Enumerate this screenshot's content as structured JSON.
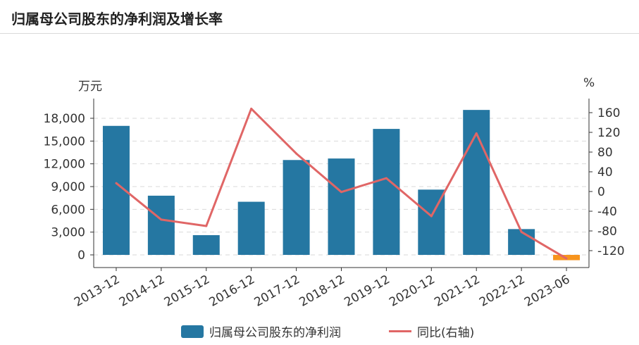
{
  "header": {
    "title": "归属母公司股东的净利润及增长率"
  },
  "chart_data": {
    "type": "bar",
    "title": "归属母公司股东的净利润及增长率",
    "categories": [
      "2013-12",
      "2014-12",
      "2015-12",
      "2016-12",
      "2017-12",
      "2018-12",
      "2019-12",
      "2020-12",
      "2021-12",
      "2022-12",
      "2023-06"
    ],
    "ylabel": "万元",
    "y2label": "%",
    "ylim": [
      -1000,
      20000
    ],
    "y2lim": [
      -135,
      170
    ],
    "yticks": [
      0,
      3000,
      6000,
      9000,
      12000,
      15000,
      18000
    ],
    "ytick_labels": [
      "0",
      "3,000",
      "6,000",
      "9,000",
      "12,000",
      "15,000",
      "18,000"
    ],
    "y2ticks": [
      -120,
      -80,
      -40,
      0,
      40,
      80,
      120,
      160
    ],
    "y2tick_labels": [
      "-120",
      "-80",
      "-40",
      "0",
      "40",
      "80",
      "120",
      "160"
    ],
    "series": [
      {
        "name": "归属母公司股东的净利润",
        "type": "bar",
        "axis": "left",
        "color": "#2577a2",
        "negative_color": "#f7941d",
        "values": [
          17000,
          7800,
          2600,
          7000,
          12500,
          12700,
          16600,
          8600,
          19100,
          3400,
          -700
        ]
      },
      {
        "name": "同比(右轴)",
        "type": "line",
        "axis": "right",
        "color": "#e06666",
        "values": [
          17,
          -57,
          -70,
          168,
          77,
          -1,
          27,
          -50,
          118,
          -82,
          -136
        ]
      }
    ],
    "grid": true,
    "legend_position": "bottom"
  },
  "legend": {
    "bar_label": "归属母公司股东的净利润",
    "line_label": "同比(右轴)"
  }
}
